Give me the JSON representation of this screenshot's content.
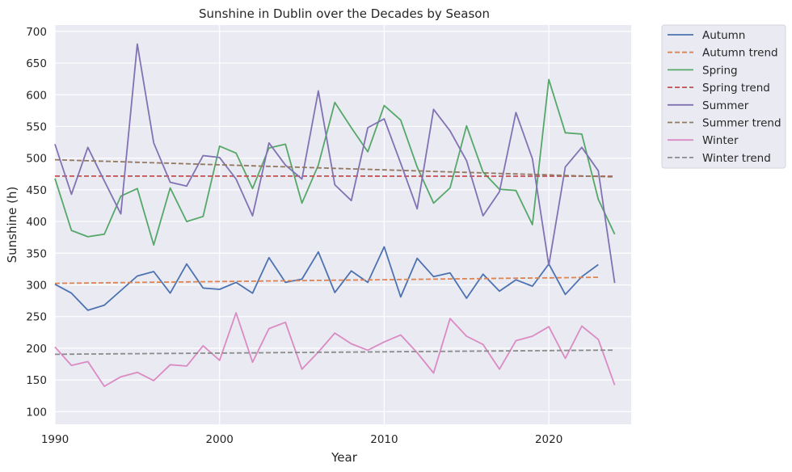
{
  "chart_data": {
    "type": "line",
    "title": "Sunshine in Dublin over the Decades by Season",
    "xlabel": "Year",
    "ylabel": "Sunshine (h)",
    "xlim": [
      1990,
      2025
    ],
    "ylim": [
      80,
      710
    ],
    "xticks": [
      1990,
      2000,
      2010,
      2020
    ],
    "yticks": [
      100,
      150,
      200,
      250,
      300,
      350,
      400,
      450,
      500,
      550,
      600,
      650,
      700
    ],
    "grid": true,
    "legend_position": "outside-top-right",
    "x": [
      1990,
      1991,
      1992,
      1993,
      1994,
      1995,
      1996,
      1997,
      1998,
      1999,
      2000,
      2001,
      2002,
      2003,
      2004,
      2005,
      2006,
      2007,
      2008,
      2009,
      2010,
      2011,
      2012,
      2013,
      2014,
      2015,
      2016,
      2017,
      2018,
      2019,
      2020,
      2021,
      2022,
      2023,
      2024
    ],
    "series": [
      {
        "name": "Autumn",
        "color": "#4c72b0",
        "dash": "solid",
        "values": [
          301,
          287,
          260,
          268,
          291,
          314,
          321,
          287,
          333,
          295,
          293,
          304,
          287,
          343,
          304,
          309,
          352,
          288,
          322,
          304,
          360,
          281,
          342,
          313,
          319,
          279,
          317,
          290,
          308,
          298,
          333,
          285,
          313,
          332,
          null
        ]
      },
      {
        "name": "Autumn trend",
        "color": "#dd8452",
        "dash": "dashed",
        "values": [
          302.4,
          302.7,
          303.0,
          303.3,
          303.6,
          303.9,
          304.2,
          304.5,
          304.7,
          305.0,
          305.3,
          305.6,
          305.9,
          306.2,
          306.5,
          306.8,
          307.1,
          307.4,
          307.7,
          307.9,
          308.2,
          308.5,
          308.8,
          309.1,
          309.4,
          309.7,
          310.0,
          310.3,
          310.6,
          310.8,
          311.1,
          311.4,
          311.7,
          312.0,
          null
        ]
      },
      {
        "name": "Spring",
        "color": "#55a868",
        "dash": "solid",
        "values": [
          468,
          386,
          376,
          380,
          440,
          452,
          363,
          453,
          400,
          408,
          519,
          508,
          452,
          516,
          522,
          429,
          489,
          588,
          548,
          510,
          583,
          560,
          486,
          429,
          453,
          551,
          478,
          451,
          449,
          395,
          624,
          540,
          538,
          435,
          380
        ]
      },
      {
        "name": "Spring trend",
        "color": "#c44e52",
        "dash": "dashed",
        "values": [
          471.6,
          471.6,
          471.6,
          471.6,
          471.6,
          471.6,
          471.6,
          471.6,
          471.6,
          471.6,
          471.6,
          471.6,
          471.6,
          471.6,
          471.6,
          471.6,
          471.6,
          471.6,
          471.6,
          471.6,
          471.5,
          471.5,
          471.5,
          471.5,
          471.5,
          471.5,
          471.5,
          471.5,
          471.5,
          471.5,
          471.5,
          471.5,
          471.5,
          471.5,
          471.5
        ]
      },
      {
        "name": "Summer",
        "color": "#8172b3",
        "dash": "solid",
        "values": [
          522,
          443,
          517,
          464,
          412,
          680,
          524,
          462,
          456,
          504,
          501,
          467,
          409,
          524,
          489,
          467,
          606,
          458,
          433,
          548,
          562,
          492,
          420,
          577,
          543,
          496,
          409,
          447,
          572,
          499,
          331,
          486,
          517,
          480,
          303
        ]
      },
      {
        "name": "Summer trend",
        "color": "#937860",
        "dash": "dashed",
        "values": [
          497.5,
          496.7,
          495.9,
          495.1,
          494.3,
          493.5,
          492.7,
          491.9,
          491.1,
          490.3,
          489.5,
          488.7,
          487.9,
          487.1,
          486.3,
          485.5,
          484.7,
          483.9,
          483.1,
          482.3,
          481.5,
          480.7,
          479.9,
          479.1,
          478.3,
          477.5,
          476.7,
          475.9,
          475.1,
          474.3,
          473.5,
          472.7,
          471.9,
          471.1,
          470.3
        ]
      },
      {
        "name": "Winter",
        "color": "#da8bc3",
        "dash": "solid",
        "values": [
          202,
          173,
          179,
          140,
          155,
          162,
          149,
          174,
          172,
          204,
          181,
          256,
          178,
          231,
          241,
          167,
          194,
          224,
          207,
          197,
          210,
          221,
          193,
          161,
          247,
          219,
          206,
          167,
          212,
          219,
          234,
          184,
          235,
          214,
          142
        ]
      },
      {
        "name": "Winter trend",
        "color": "#8c8c8c",
        "dash": "dashed",
        "values": [
          190.5,
          190.7,
          190.9,
          191.1,
          191.3,
          191.5,
          191.7,
          191.9,
          192.0,
          192.2,
          192.4,
          192.6,
          192.8,
          193.0,
          193.2,
          193.4,
          193.6,
          193.8,
          194.0,
          194.2,
          194.4,
          194.6,
          194.8,
          195.0,
          195.2,
          195.4,
          195.6,
          195.8,
          195.9,
          196.1,
          196.3,
          196.5,
          196.7,
          196.9,
          197.1
        ]
      }
    ]
  }
}
